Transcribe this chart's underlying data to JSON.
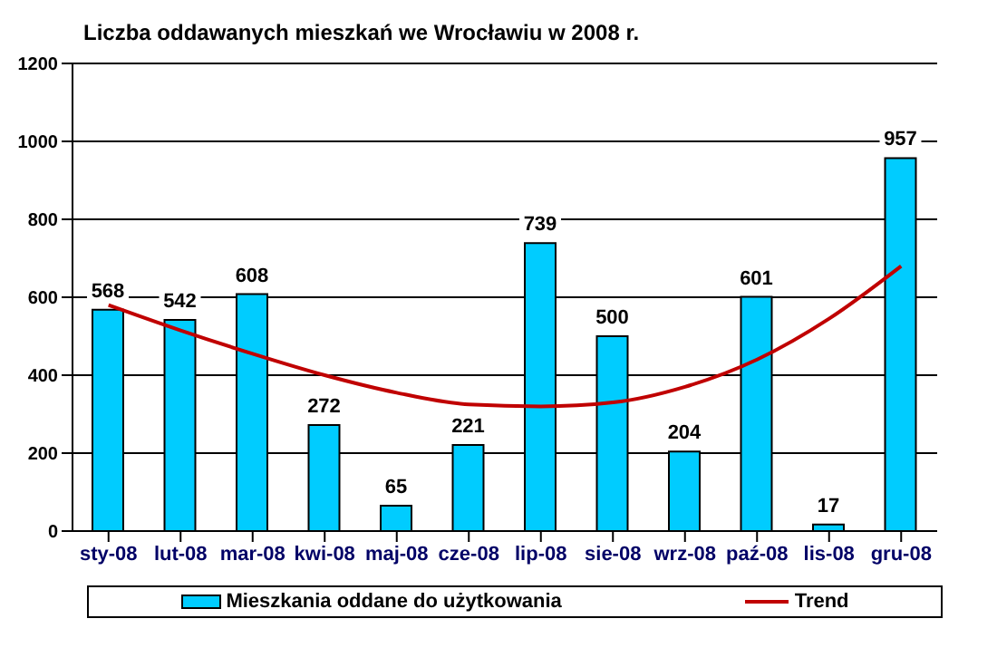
{
  "chart_data": {
    "type": "bar",
    "title": "Liczba oddawanych mieszkań we Wrocławiu w 2008 r.",
    "categories": [
      "sty-08",
      "lut-08",
      "mar-08",
      "kwi-08",
      "maj-08",
      "cze-08",
      "lip-08",
      "sie-08",
      "wrz-08",
      "paź-08",
      "lis-08",
      "gru-08"
    ],
    "series": [
      {
        "name": "Mieszkania oddane do użytkowania",
        "color": "#00ccff",
        "values": [
          568,
          542,
          608,
          272,
          65,
          221,
          739,
          500,
          204,
          601,
          17,
          957
        ],
        "value_labels": [
          "568",
          "542",
          "608",
          "272",
          "65",
          "221",
          "739",
          "500",
          "204",
          "601",
          "17",
          "957"
        ]
      },
      {
        "name": "Trend",
        "type": "line",
        "color": "#c00000",
        "values": [
          580,
          515,
          455,
          400,
          355,
          325,
          320,
          330,
          370,
          440,
          545,
          680
        ]
      }
    ],
    "ylim": [
      0,
      1200
    ],
    "yticks": [
      0,
      200,
      400,
      600,
      800,
      1000,
      1200
    ],
    "grid": "y",
    "legend": "bottom",
    "marker": "none"
  }
}
